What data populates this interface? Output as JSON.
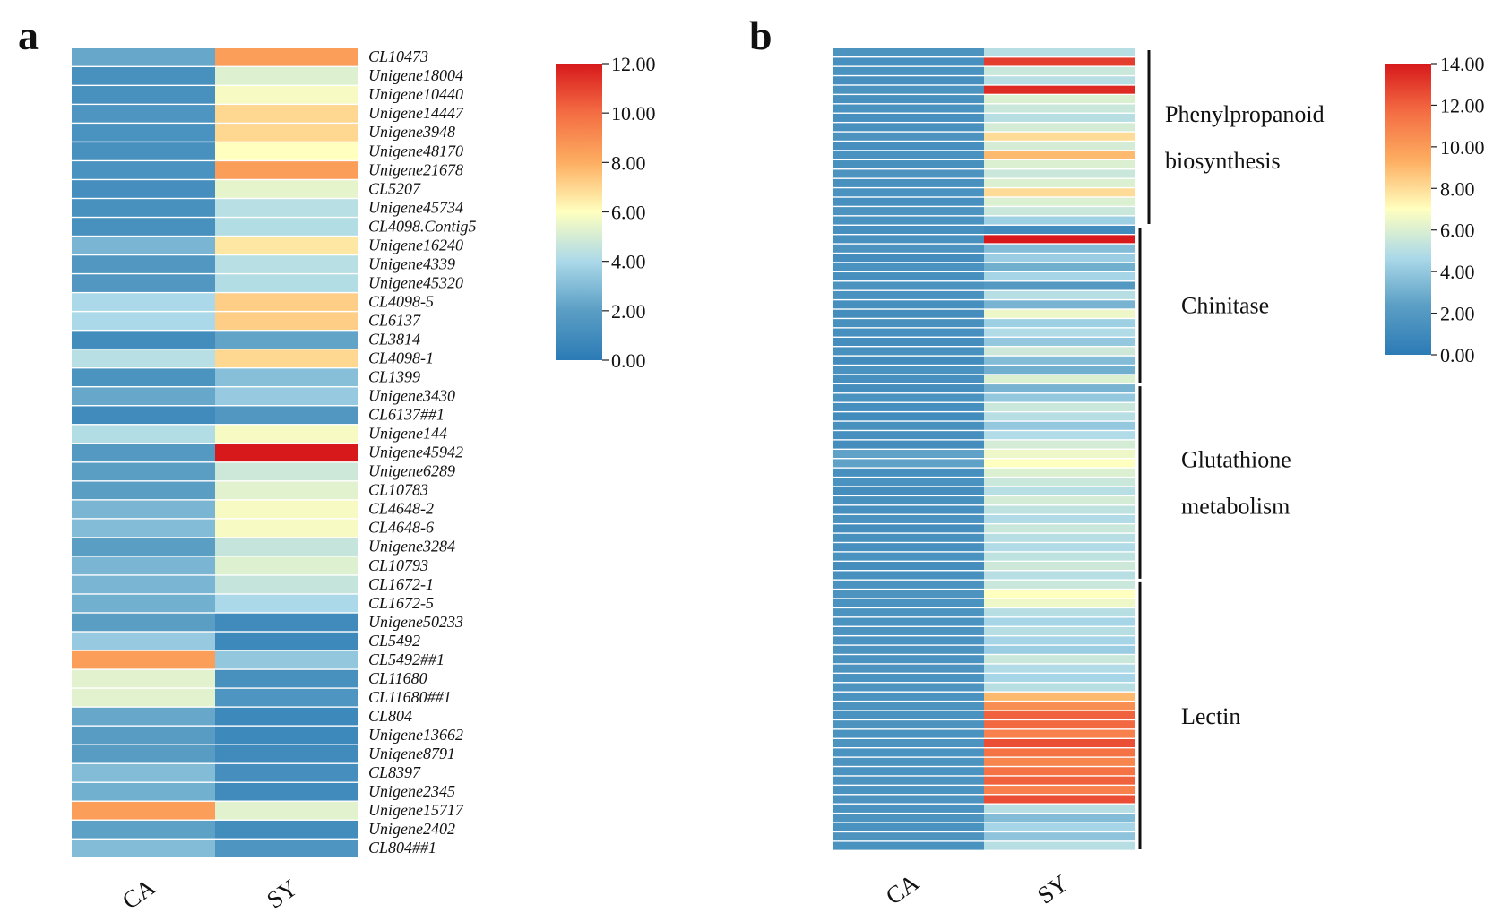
{
  "colormap": {
    "name": "RdYlBu_r",
    "stops": [
      "#2c7bb6",
      "#5a9ec4",
      "#abd9e9",
      "#ffffbf",
      "#fdae61",
      "#f46d43",
      "#d7191c"
    ]
  },
  "chart_data": [
    {
      "panel": "a",
      "type": "heatmap",
      "title": "",
      "columns": [
        "CA",
        "SY"
      ],
      "rows": [
        "CL10473",
        "Unigene18004",
        "Unigene10440",
        "Unigene14447",
        "Unigene3948",
        "Unigene48170",
        "Unigene21678",
        "CL5207",
        "Unigene45734",
        "CL4098.Contig5",
        "Unigene16240",
        "Unigene4339",
        "Unigene45320",
        "CL4098-5",
        "CL6137",
        "CL3814",
        "CL4098-1",
        "CL1399",
        "Unigene3430",
        "CL6137##1",
        "Unigene144",
        "Unigene45942",
        "Unigene6289",
        "CL10783",
        "CL4648-2",
        "CL4648-6",
        "Unigene3284",
        "CL10793",
        "CL1672-1",
        "CL1672-5",
        "Unigene50233",
        "CL5492",
        "CL5492##1",
        "CL11680",
        "CL11680##1",
        "CL804",
        "Unigene13662",
        "Unigene8791",
        "CL8397",
        "Unigene2345",
        "Unigene15717",
        "Unigene2402",
        "CL804##1"
      ],
      "values": [
        [
          2.3,
          8.5
        ],
        [
          1.2,
          5.2
        ],
        [
          1.2,
          5.8
        ],
        [
          1.5,
          7.0
        ],
        [
          1.3,
          7.0
        ],
        [
          1.2,
          6.0
        ],
        [
          1.3,
          8.5
        ],
        [
          1.1,
          5.4
        ],
        [
          1.2,
          4.3
        ],
        [
          1.2,
          4.2
        ],
        [
          2.8,
          6.6
        ],
        [
          1.6,
          4.3
        ],
        [
          1.6,
          4.2
        ],
        [
          4.0,
          7.2
        ],
        [
          4.0,
          7.2
        ],
        [
          1.0,
          2.2
        ],
        [
          4.3,
          7.0
        ],
        [
          1.4,
          3.1
        ],
        [
          2.3,
          3.5
        ],
        [
          0.9,
          1.6
        ],
        [
          4.2,
          5.8
        ],
        [
          1.7,
          12.0
        ],
        [
          2.0,
          4.8
        ],
        [
          2.0,
          5.3
        ],
        [
          2.8,
          5.8
        ],
        [
          3.0,
          5.8
        ],
        [
          2.0,
          4.6
        ],
        [
          2.8,
          5.2
        ],
        [
          2.8,
          4.6
        ],
        [
          2.6,
          4.0
        ],
        [
          2.0,
          0.9
        ],
        [
          3.5,
          0.8
        ],
        [
          8.5,
          3.4
        ],
        [
          5.3,
          1.2
        ],
        [
          5.3,
          1.5
        ],
        [
          2.3,
          0.8
        ],
        [
          1.9,
          0.8
        ],
        [
          1.9,
          0.9
        ],
        [
          3.0,
          1.1
        ],
        [
          2.6,
          0.9
        ],
        [
          8.5,
          5.3
        ],
        [
          2.1,
          1.0
        ],
        [
          3.0,
          1.5
        ]
      ],
      "colorbar": {
        "min": 0,
        "max": 12,
        "ticks": [
          "0.00",
          "2.00",
          "4.00",
          "6.00",
          "8.00",
          "10.00",
          "12.00"
        ]
      }
    },
    {
      "panel": "b",
      "type": "heatmap",
      "title": "",
      "columns": [
        "CA",
        "SY"
      ],
      "n_rows": 86,
      "ca_values": [
        1.6,
        1.3,
        1.5,
        1.3,
        1.6,
        1.4,
        1.5,
        1.3,
        1.4,
        1.6,
        1.3,
        1.5,
        1.4,
        1.6,
        1.4,
        1.5,
        1.3,
        1.6,
        1.5,
        1.3,
        1.4,
        1.6,
        1.2,
        1.5,
        1.3,
        1.6,
        1.5,
        1.3,
        1.2,
        1.4,
        1.3,
        1.2,
        1.4,
        1.1,
        1.5,
        1.3,
        1.2,
        1.5,
        1.3,
        1.1,
        1.4,
        1.3,
        1.2,
        2.5,
        2.5,
        1.3,
        1.5,
        1.2,
        1.4,
        1.3,
        1.5,
        1.2,
        1.4,
        1.3,
        1.5,
        1.2,
        1.4,
        1.5,
        1.6,
        1.5,
        1.6,
        1.5,
        1.6,
        1.5,
        1.6,
        1.5,
        1.6,
        1.5,
        1.6,
        1.5,
        1.6,
        1.5,
        1.6,
        1.5,
        1.6,
        1.5,
        1.6,
        1.5,
        1.6,
        1.5,
        1.6,
        1.5,
        1.6,
        1.5,
        1.6,
        1.5
      ],
      "sy_values": [
        5.0,
        13.0,
        5.5,
        5.0,
        13.5,
        6.0,
        5.5,
        5.0,
        5.8,
        8.0,
        5.8,
        9.0,
        6.0,
        5.5,
        6.0,
        8.0,
        6.0,
        5.5,
        4.3,
        1.0,
        14.0,
        3.5,
        4.2,
        3.0,
        4.5,
        2.0,
        5.0,
        3.2,
        6.5,
        4.3,
        4.8,
        4.0,
        5.6,
        3.5,
        3.0,
        6.0,
        3.2,
        4.0,
        5.5,
        5.0,
        4.0,
        4.8,
        5.8,
        6.5,
        7.0,
        6.0,
        5.5,
        5.0,
        5.8,
        5.2,
        4.8,
        5.5,
        5.0,
        4.8,
        5.2,
        5.6,
        5.0,
        5.5,
        7.0,
        6.5,
        5.0,
        4.5,
        5.0,
        4.5,
        4.2,
        5.5,
        4.8,
        4.5,
        5.0,
        9.0,
        10.5,
        12.0,
        11.8,
        11.0,
        12.5,
        11.5,
        10.8,
        11.5,
        12.0,
        11.0,
        12.5,
        5.0,
        3.5,
        4.5,
        3.8,
        5.0
      ],
      "groups": [
        {
          "label": "Phenylpropanoid biosynthesis",
          "start_row": 0,
          "end_row": 18
        },
        {
          "label": "Chinitase",
          "start_row": 19,
          "end_row": 35
        },
        {
          "label": "Glutathione metabolism",
          "start_row": 36,
          "end_row": 56
        },
        {
          "label": "Lectin",
          "start_row": 57,
          "end_row": 85
        }
      ],
      "colorbar": {
        "min": 0,
        "max": 14,
        "ticks": [
          "0.00",
          "2.00",
          "4.00",
          "6.00",
          "8.00",
          "10.00",
          "12.00",
          "14.00"
        ]
      }
    }
  ]
}
